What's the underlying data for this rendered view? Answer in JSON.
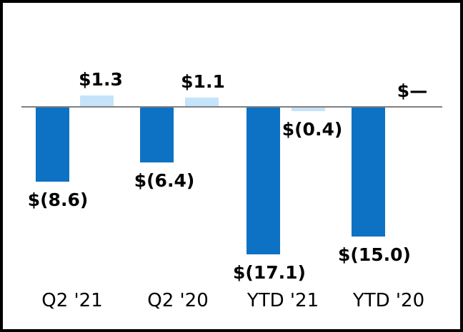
{
  "chart_data": {
    "type": "bar",
    "title": "",
    "xlabel": "",
    "ylabel": "",
    "categories": [
      "Q2 '21",
      "Q2 '20",
      "YTD '21",
      "YTD '20"
    ],
    "series": [
      {
        "name": "dark-blue-series",
        "color": "#0D72C4",
        "values": [
          -8.6,
          -6.4,
          -17.1,
          -15.0
        ],
        "labels": [
          "$(8.6)",
          "$(6.4)",
          "$(17.1)",
          "$(15.0)"
        ]
      },
      {
        "name": "light-blue-series",
        "color": "#C5E3F9",
        "values": [
          1.3,
          1.1,
          -0.4,
          0
        ],
        "labels": [
          "$1.3",
          "$1.1",
          "$(0.4)",
          "$—"
        ]
      }
    ],
    "baseline_value": 0,
    "baseline_color": "#808080",
    "border_color": "#000000",
    "background_color": "#FFFFFF",
    "grid": false,
    "legend": false,
    "y_axis_visible": false,
    "x_axis_tick_labels_visible": true,
    "data_labels_visible": true
  }
}
